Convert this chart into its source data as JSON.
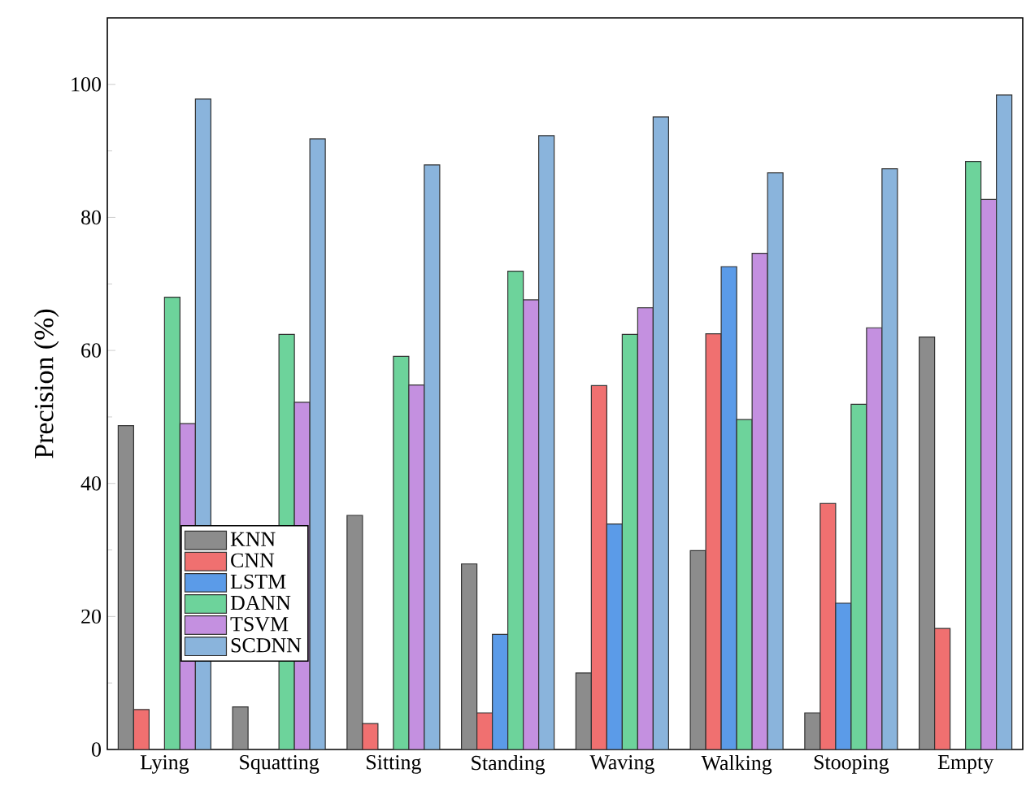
{
  "chart_data": {
    "type": "bar",
    "ylabel": "Precision (%)",
    "categories": [
      "Lying",
      "Squatting",
      "Sitting",
      "Standing",
      "Waving",
      "Walking",
      "Stooping",
      "Empty"
    ],
    "series": [
      {
        "name": "KNN",
        "color": "#8c8c8c",
        "values": [
          48.7,
          6.4,
          35.2,
          27.9,
          11.5,
          29.9,
          5.5,
          62.0
        ]
      },
      {
        "name": "CNN",
        "color": "#f07070",
        "values": [
          6.0,
          null,
          3.9,
          5.5,
          54.7,
          62.5,
          37.0,
          18.2
        ]
      },
      {
        "name": "LSTM",
        "color": "#5b9be8",
        "values": [
          null,
          null,
          null,
          17.3,
          33.9,
          72.6,
          22.0,
          null
        ]
      },
      {
        "name": "DANN",
        "color": "#6dd39b",
        "values": [
          68.0,
          62.4,
          59.1,
          71.9,
          62.4,
          49.6,
          51.9,
          88.4
        ]
      },
      {
        "name": "TSVM",
        "color": "#c490e0",
        "values": [
          49.0,
          52.2,
          54.8,
          67.6,
          66.4,
          74.6,
          63.4,
          82.7
        ]
      },
      {
        "name": "SCDNN",
        "color": "#8ab4dc",
        "values": [
          97.8,
          91.8,
          87.9,
          92.3,
          95.1,
          86.7,
          87.3,
          98.4
        ]
      }
    ],
    "ylim": [
      0,
      110
    ],
    "yticks": [
      0,
      20,
      40,
      60,
      80,
      100
    ],
    "grid": false,
    "legend": "bottom left"
  }
}
